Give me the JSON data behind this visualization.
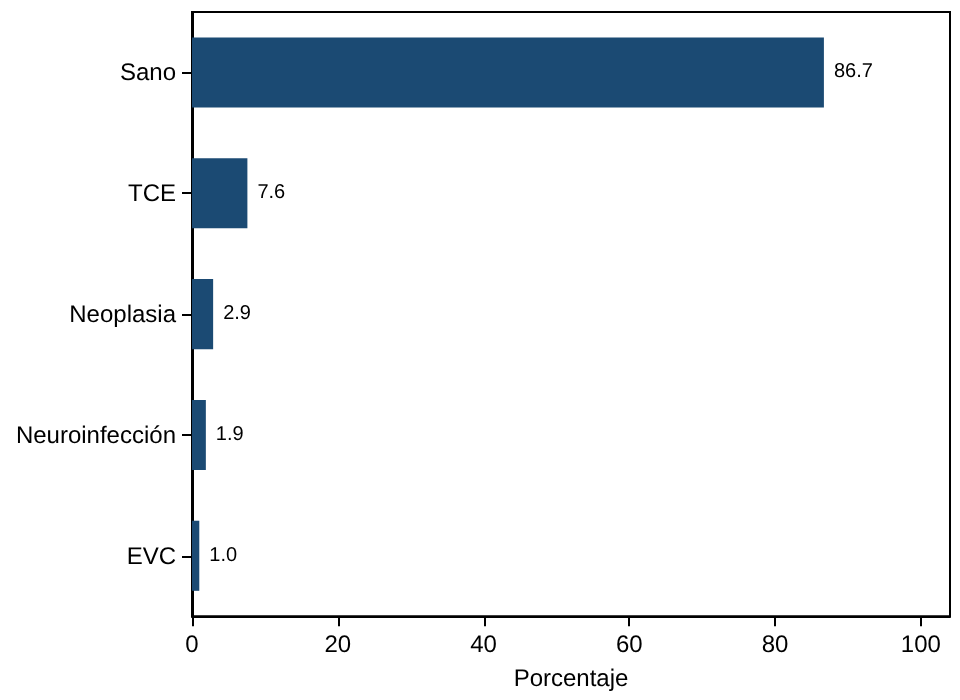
{
  "chart_data": {
    "type": "bar",
    "orientation": "horizontal",
    "xlabel": "Porcentaje",
    "categories": [
      "Sano",
      "TCE",
      "Neoplasia",
      "Neuroinfección",
      "EVC"
    ],
    "values": [
      86.7,
      7.6,
      2.9,
      1.9,
      1.0
    ],
    "color": "#1b4a73",
    "value_labels": [
      "86.7",
      "7.6",
      "2.9",
      "1.9",
      "1.0"
    ],
    "xlim": [
      0,
      104
    ],
    "xticks": [
      0,
      20,
      40,
      60,
      80,
      100
    ],
    "grid": false
  }
}
